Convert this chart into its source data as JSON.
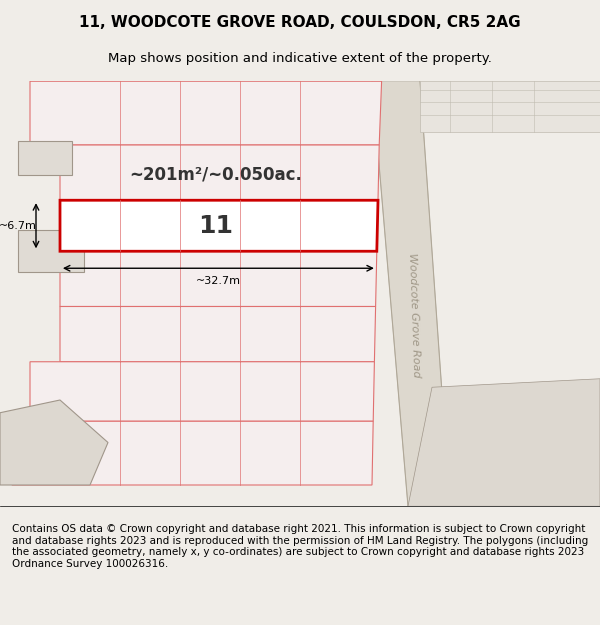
{
  "title_line1": "11, WOODCOTE GROVE ROAD, COULSDON, CR5 2AG",
  "title_line2": "Map shows position and indicative extent of the property.",
  "footer_text": "Contains OS data © Crown copyright and database right 2021. This information is subject to Crown copyright and database rights 2023 and is reproduced with the permission of HM Land Registry. The polygons (including the associated geometry, namely x, y co-ordinates) are subject to Crown copyright and database rights 2023 Ordnance Survey 100026316.",
  "area_text": "~201m²/~0.050ac.",
  "property_label": "11",
  "dim_width": "~32.7m",
  "dim_height": "~6.7m",
  "road_label": "Woodcote Grove Road",
  "background_color": "#f0ede8",
  "plot_bg": "#f0ede8",
  "map_bg": "#f0ede8",
  "highlight_fill": "#ffffff",
  "highlight_stroke": "#cc0000",
  "parcel_stroke": "#e88080",
  "parcel_fill": "#f8f0f0",
  "road_fill": "#e8e4de",
  "title_fontsize": 11,
  "subtitle_fontsize": 9.5,
  "footer_fontsize": 7.5
}
